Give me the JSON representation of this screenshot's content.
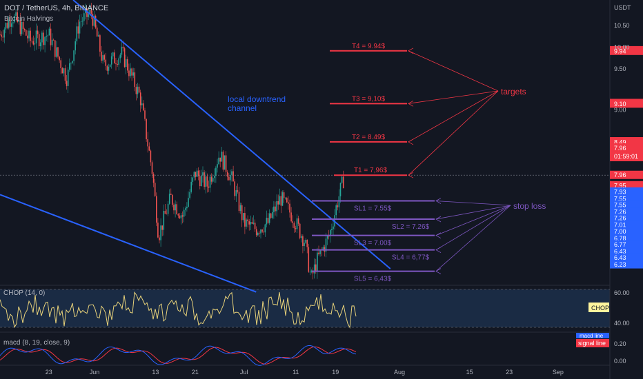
{
  "header": {
    "symbol_line": "DOT / TetherUS, 4h, BINANCE",
    "indicator_line": "Bitcoin Halvings"
  },
  "price_axis": {
    "currency": "USDT",
    "ticks": [
      "10.50",
      "10.00",
      "9.50",
      "9.00"
    ],
    "current_price": "7.96",
    "countdown": "01:59:01"
  },
  "price_labels": [
    {
      "text": "9.95",
      "price": 9.95,
      "color": "#f23645"
    },
    {
      "text": "9.94",
      "price": 9.94,
      "color": "#f23645"
    },
    {
      "text": "9.11",
      "price": 9.11,
      "color": "#f23645"
    },
    {
      "text": "9.10",
      "price": 9.1,
      "color": "#f23645"
    },
    {
      "text": "8.50",
      "price": 8.5,
      "color": "#f23645"
    },
    {
      "text": "8.49",
      "price": 8.49,
      "color": "#f23645"
    },
    {
      "text": "7.96",
      "price": 7.965,
      "color": "#f23645"
    },
    {
      "text": "7.95",
      "price": 7.8,
      "color": "#f23645"
    },
    {
      "text": "7.93",
      "price": 7.7,
      "color": "#2962ff"
    },
    {
      "text": "7.55",
      "price": 7.59,
      "color": "#2962ff"
    },
    {
      "text": "7.55",
      "price": 7.49,
      "color": "#2962ff"
    },
    {
      "text": "7.26",
      "price": 7.38,
      "color": "#2962ff"
    },
    {
      "text": "7.26",
      "price": 7.28,
      "color": "#2962ff"
    },
    {
      "text": "7.01",
      "price": 7.17,
      "color": "#2962ff"
    },
    {
      "text": "7.00",
      "price": 7.07,
      "color": "#2962ff"
    },
    {
      "text": "6.78",
      "price": 6.96,
      "color": "#2962ff"
    },
    {
      "text": "6.77",
      "price": 6.86,
      "color": "#2962ff"
    },
    {
      "text": "6.43",
      "price": 6.75,
      "color": "#2962ff"
    },
    {
      "text": "6.43",
      "price": 6.65,
      "color": "#2962ff"
    },
    {
      "text": "6.23",
      "price": 6.54,
      "color": "#2962ff"
    }
  ],
  "x_axis_ticks": [
    {
      "label": "23",
      "t": 0.08
    },
    {
      "label": "Jun",
      "t": 0.155
    },
    {
      "label": "13",
      "t": 0.255
    },
    {
      "label": "21",
      "t": 0.32
    },
    {
      "label": "Jul",
      "t": 0.4
    },
    {
      "label": "11",
      "t": 0.485
    },
    {
      "label": "19",
      "t": 0.55
    },
    {
      "label": "Aug",
      "t": 0.655
    },
    {
      "label": "15",
      "t": 0.77
    },
    {
      "label": "23",
      "t": 0.835
    },
    {
      "label": "Sep",
      "t": 0.915
    }
  ],
  "annotations": {
    "channel_label_line1": "local downtrend",
    "channel_label_line2": "channel",
    "targets_label": "targets",
    "stoploss_label": "stop loss",
    "targets": [
      {
        "label": "T4 = 9.94$",
        "price": 9.94
      },
      {
        "label": "T3 = 9,10$",
        "price": 9.1
      },
      {
        "label": "T2 = 8.49$",
        "price": 8.49
      },
      {
        "label": "T1 = 7,96$",
        "price": 7.96
      }
    ],
    "stops": [
      {
        "label": "SL1 = 7.55$",
        "price": 7.55
      },
      {
        "label": "SL2 = 7.26$",
        "price": 7.26
      },
      {
        "label": "SL3 = 7.00$",
        "price": 7.0
      },
      {
        "label": "SL4 = 6,77$",
        "price": 6.77
      },
      {
        "label": "SL5 = 6,43$",
        "price": 6.43
      }
    ]
  },
  "chop_panel": {
    "title": "CHOP (14, 0)",
    "badge": "CHOP",
    "ticks": [
      "60.00",
      "40.00"
    ]
  },
  "macd_panel": {
    "title": "macd (8, 19, close, 9)",
    "legend": [
      "macd line",
      "signal line"
    ],
    "ticks": [
      "0.20",
      "0.00"
    ]
  },
  "chart_data": {
    "type": "line",
    "title": "DOT / TetherUS, 4h, BINANCE",
    "y_unit": "USDT",
    "ylim": [
      6.25,
      10.75
    ],
    "price_path": [
      {
        "t": 0.0,
        "price": 10.2
      },
      {
        "t": 0.02,
        "price": 10.5
      },
      {
        "t": 0.05,
        "price": 10.1
      },
      {
        "t": 0.08,
        "price": 10.2
      },
      {
        "t": 0.11,
        "price": 9.5
      },
      {
        "t": 0.13,
        "price": 10.4
      },
      {
        "t": 0.15,
        "price": 10.55
      },
      {
        "t": 0.17,
        "price": 9.7
      },
      {
        "t": 0.2,
        "price": 9.9
      },
      {
        "t": 0.23,
        "price": 9.2
      },
      {
        "t": 0.25,
        "price": 8.0
      },
      {
        "t": 0.26,
        "price": 7.0
      },
      {
        "t": 0.28,
        "price": 7.6
      },
      {
        "t": 0.3,
        "price": 7.3
      },
      {
        "t": 0.32,
        "price": 8.0
      },
      {
        "t": 0.34,
        "price": 7.8
      },
      {
        "t": 0.36,
        "price": 8.3
      },
      {
        "t": 0.38,
        "price": 7.9
      },
      {
        "t": 0.4,
        "price": 7.2
      },
      {
        "t": 0.42,
        "price": 7.1
      },
      {
        "t": 0.44,
        "price": 7.2
      },
      {
        "t": 0.46,
        "price": 7.6
      },
      {
        "t": 0.48,
        "price": 7.3
      },
      {
        "t": 0.5,
        "price": 6.9
      },
      {
        "t": 0.51,
        "price": 6.3
      },
      {
        "t": 0.52,
        "price": 6.6
      },
      {
        "t": 0.54,
        "price": 7.0
      },
      {
        "t": 0.555,
        "price": 7.6
      },
      {
        "t": 0.565,
        "price": 7.96
      }
    ],
    "downtrend_upper": [
      {
        "t": 0.12,
        "price": 10.75
      },
      {
        "t": 0.64,
        "price": 6.47
      }
    ],
    "downtrend_lower": [
      {
        "t": 0.0,
        "price": 7.65
      },
      {
        "t": 0.42,
        "price": 6.1
      }
    ]
  }
}
